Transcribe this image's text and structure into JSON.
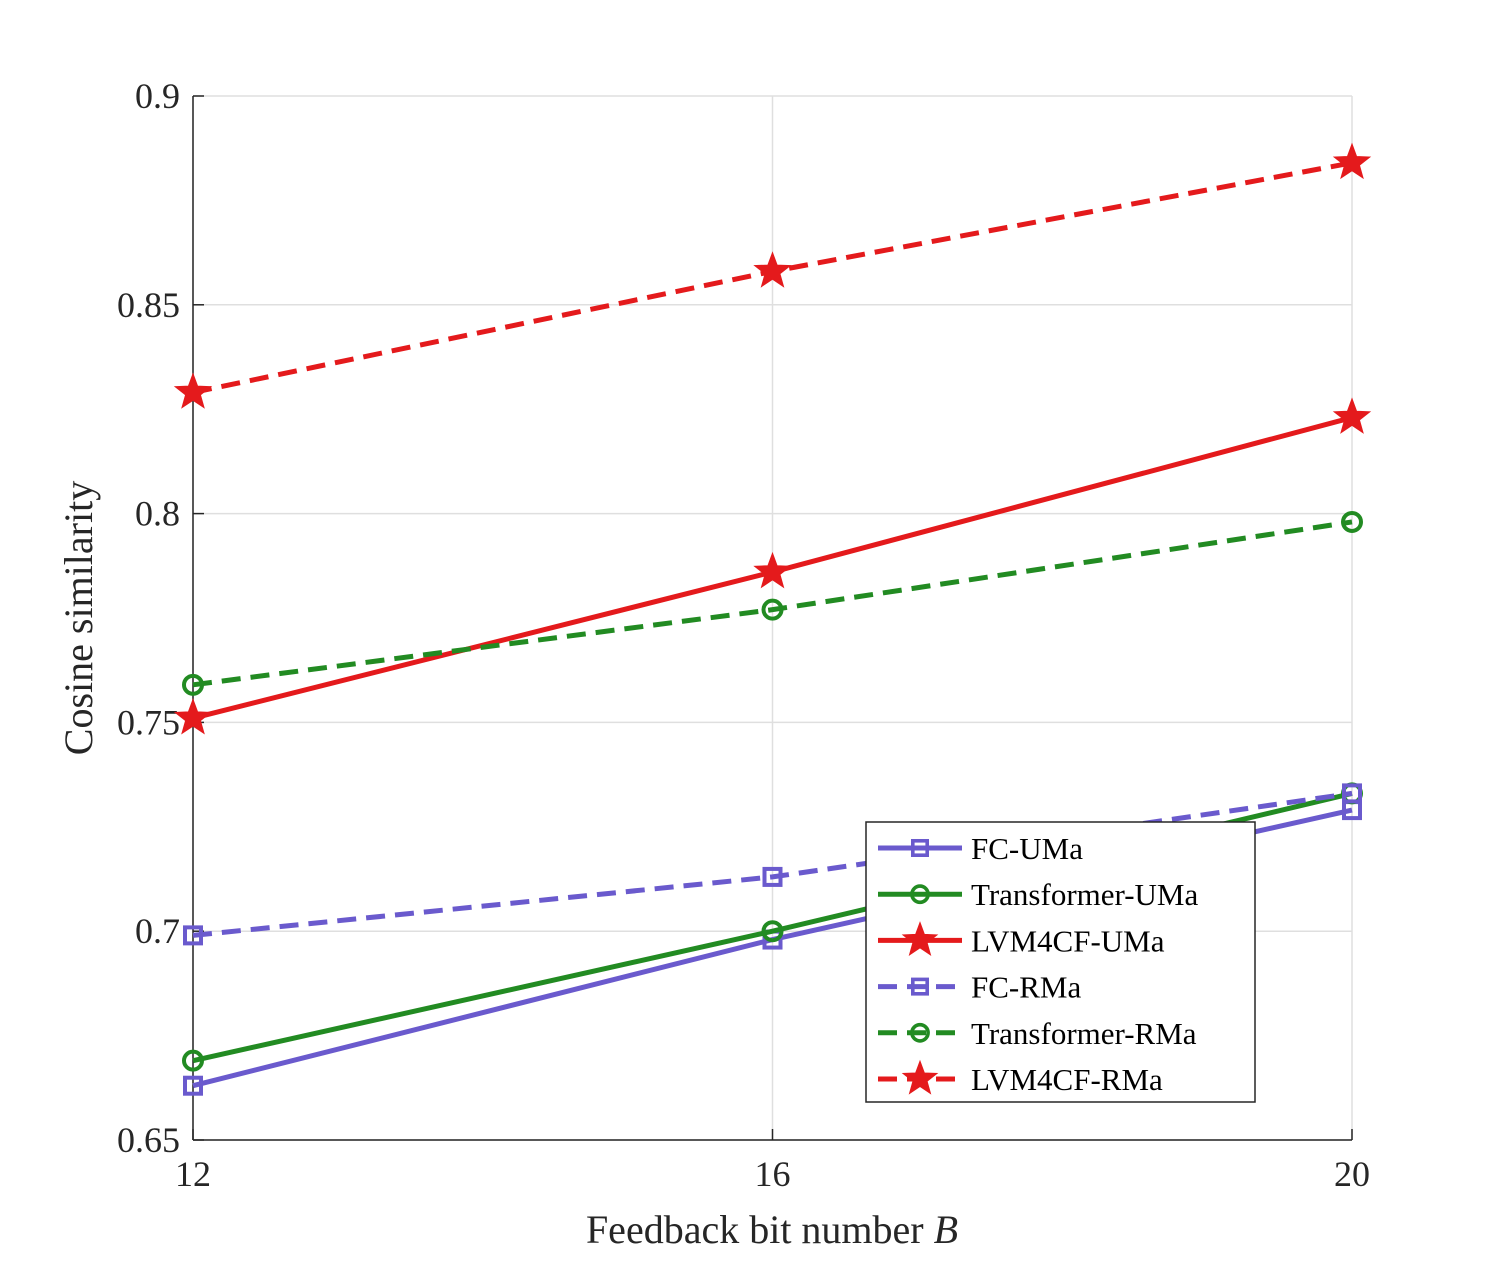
{
  "chart_data": {
    "type": "line",
    "title": "",
    "xlabel": "Feedback bit number ",
    "xlabel_var": "B",
    "ylabel": "Cosine similarity",
    "x": [
      12,
      16,
      20
    ],
    "xlim": [
      12,
      20
    ],
    "ylim": [
      0.65,
      0.9
    ],
    "xticks": [
      12,
      16,
      20
    ],
    "yticks": [
      0.65,
      0.7,
      0.75,
      0.8,
      0.85,
      0.9
    ],
    "xtick_labels": [
      "12",
      "16",
      "20"
    ],
    "ytick_labels": [
      "0.65",
      "0.7",
      "0.75",
      "0.8",
      "0.85",
      "0.9"
    ],
    "grid": true,
    "legend_position": "bottom-right",
    "series": [
      {
        "name": "FC-UMa",
        "values": [
          0.663,
          0.698,
          0.729
        ],
        "color": "#6a5acd",
        "dashed": false,
        "marker": "square"
      },
      {
        "name": "Transformer-UMa",
        "values": [
          0.669,
          0.7,
          0.733
        ],
        "color": "#228b22",
        "dashed": false,
        "marker": "circle"
      },
      {
        "name": "LVM4CF-UMa",
        "values": [
          0.751,
          0.786,
          0.823
        ],
        "color": "#e41a1c",
        "dashed": false,
        "marker": "star"
      },
      {
        "name": "FC-RMa",
        "values": [
          0.699,
          0.713,
          0.733
        ],
        "color": "#6a5acd",
        "dashed": true,
        "marker": "square"
      },
      {
        "name": "Transformer-RMa",
        "values": [
          0.759,
          0.777,
          0.798
        ],
        "color": "#228b22",
        "dashed": true,
        "marker": "circle"
      },
      {
        "name": "LVM4CF-RMa",
        "values": [
          0.829,
          0.858,
          0.884
        ],
        "color": "#e41a1c",
        "dashed": true,
        "marker": "star"
      }
    ]
  }
}
